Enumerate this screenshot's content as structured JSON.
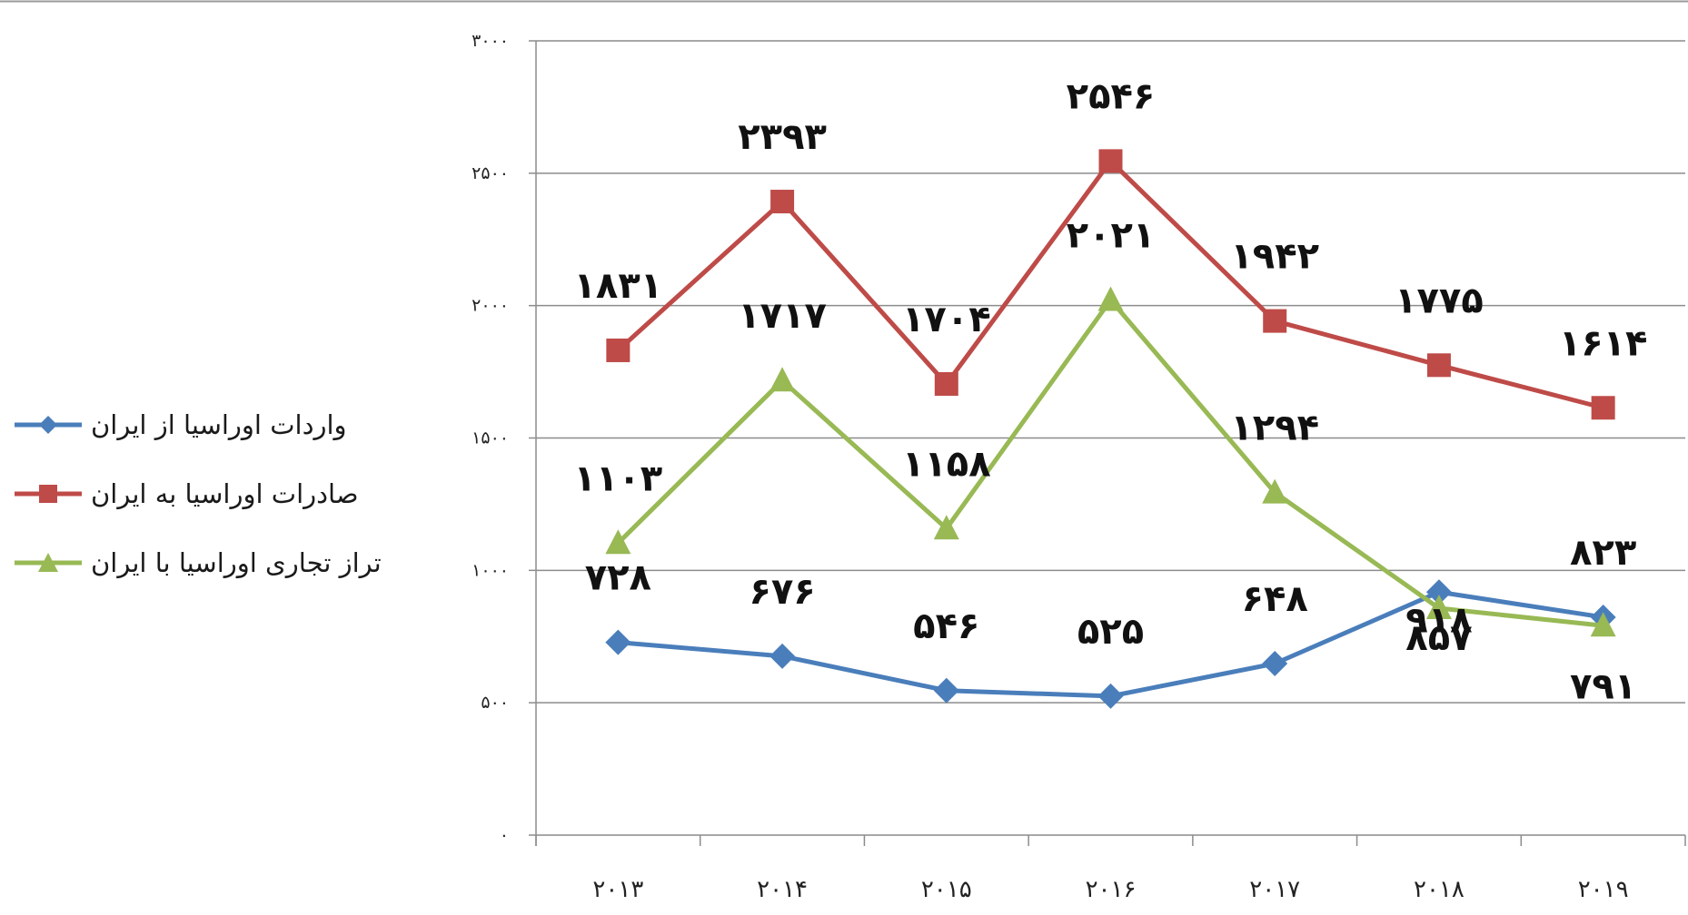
{
  "chart_data": {
    "type": "line",
    "title": "",
    "xlabel": "",
    "ylabel": "",
    "categories": [
      "۲۰۱۳",
      "۲۰۱۴",
      "۲۰۱۵",
      "۲۰۱۶",
      "۲۰۱۷",
      "۲۰۱۸",
      "۲۰۱۹"
    ],
    "ylim": [
      0,
      3000
    ],
    "yticks": [
      0,
      500,
      1000,
      1500,
      2000,
      2500,
      3000
    ],
    "ytick_labels": [
      "۰",
      "۵۰۰",
      "۱۰۰۰",
      "۱۵۰۰",
      "۲۰۰۰",
      "۲۵۰۰",
      "۳۰۰۰"
    ],
    "grid": true,
    "legend_position": "left",
    "series": [
      {
        "name": "واردات اوراسیا از ایران",
        "color": "#4a7ebb",
        "marker": "diamond",
        "values": [
          728,
          676,
          546,
          525,
          648,
          918,
          823
        ],
        "labels": [
          "۷۲۸",
          "۶۷۶",
          "۵۴۶",
          "۵۲۵",
          "۶۴۸",
          "۹۱۸",
          "۸۲۳"
        ]
      },
      {
        "name": "صادرات اوراسیا به ایران",
        "color": "#be4b48",
        "marker": "square",
        "values": [
          1831,
          2393,
          1704,
          2546,
          1942,
          1775,
          1614
        ],
        "labels": [
          "۱۸۳۱",
          "۲۳۹۳",
          "۱۷۰۴",
          "۲۵۴۶",
          "۱۹۴۲",
          "۱۷۷۵",
          "۱۶۱۴"
        ]
      },
      {
        "name": "تراز تجاری اوراسیا با ایران",
        "color": "#98b954",
        "marker": "triangle",
        "values": [
          1103,
          1717,
          1158,
          2021,
          1294,
          857,
          791
        ],
        "labels": [
          "۱۱۰۳",
          "۱۷۱۷",
          "۱۱۵۸",
          "۲۰۲۱",
          "۱۲۹۴",
          "۸۵۷",
          "۷۹۱"
        ]
      }
    ]
  }
}
